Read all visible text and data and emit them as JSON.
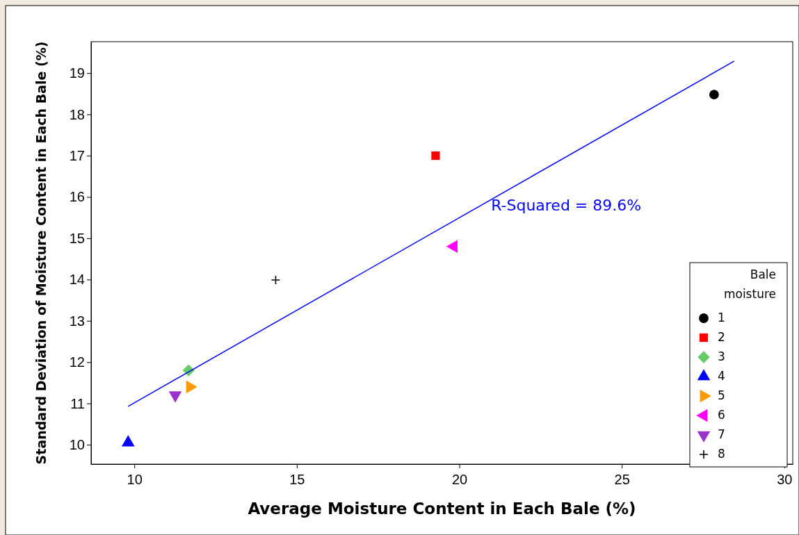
{
  "chart_data": {
    "type": "scatter",
    "xlabel": "Average Moisture Content in Each Bale (%)",
    "ylabel": "Standard Deviation of Moisture Content in Each Bale (%)",
    "legend_title": "Bale moisture",
    "legend": "bottom right",
    "grid": false,
    "xlim": [
      8.67,
      30.26
    ],
    "xticks": [
      10,
      15,
      20,
      25,
      30
    ],
    "ylim": [
      9.53,
      19.76
    ],
    "yticks": [
      10,
      11,
      12,
      13,
      14,
      15,
      16,
      17,
      18,
      19
    ],
    "series": [
      {
        "name": "1",
        "color": "#000000",
        "marker": "circle",
        "x": [
          27.84
        ],
        "values": [
          18.48
        ]
      },
      {
        "name": "2",
        "color": "#ff0000",
        "marker": "square",
        "x": [
          19.27
        ],
        "values": [
          17.0
        ]
      },
      {
        "name": "3",
        "color": "#66cc66",
        "marker": "diamond",
        "x": [
          11.67
        ],
        "values": [
          11.8
        ]
      },
      {
        "name": "4",
        "color": "#0000ff",
        "marker": "triangle",
        "x": [
          9.81
        ],
        "values": [
          10.05
        ]
      },
      {
        "name": "5",
        "color": "#ff9900",
        "marker": "triangle-right",
        "x": [
          11.71
        ],
        "values": [
          11.4
        ]
      },
      {
        "name": "6",
        "color": "#ff00ff",
        "marker": "triangle-left",
        "x": [
          19.83
        ],
        "values": [
          14.8
        ]
      },
      {
        "name": "7",
        "color": "#9933cc",
        "marker": "triangle-down",
        "x": [
          11.26
        ],
        "values": [
          11.2
        ]
      },
      {
        "name": "8",
        "color": "#000000",
        "marker": "cross",
        "x": [
          14.35
        ],
        "values": [
          13.99
        ]
      },
      {
        "type": "line",
        "color": "#0000ff",
        "marker": "none",
        "x": [
          9.81,
          28.46
        ],
        "values": [
          10.93,
          19.29
        ]
      }
    ],
    "annotations": [
      "R-Squared = 89.6%"
    ]
  }
}
